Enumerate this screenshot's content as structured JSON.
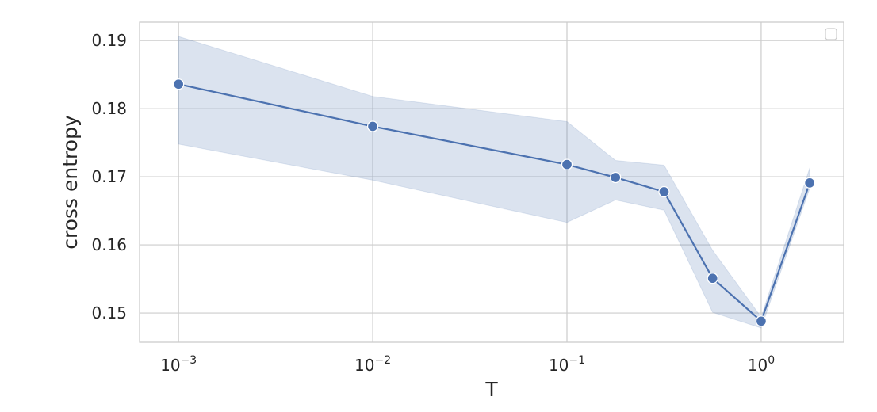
{
  "chart_data": {
    "type": "line",
    "xlabel": "T",
    "ylabel": "cross entropy",
    "xscale": "log",
    "xlim": [
      0.00063,
      2.66
    ],
    "ylim": [
      0.1457,
      0.1927
    ],
    "x_ticks": [
      {
        "value": 0.001,
        "base": "10",
        "exp": "−3"
      },
      {
        "value": 0.01,
        "base": "10",
        "exp": "−2"
      },
      {
        "value": 0.1,
        "base": "10",
        "exp": "−1"
      },
      {
        "value": 1,
        "base": "10",
        "exp": "0"
      }
    ],
    "y_ticks": [
      {
        "value": 0.15,
        "label": "0.15"
      },
      {
        "value": 0.16,
        "label": "0.16"
      },
      {
        "value": 0.17,
        "label": "0.17"
      },
      {
        "value": 0.18,
        "label": "0.18"
      },
      {
        "value": 0.19,
        "label": "0.19"
      }
    ],
    "grid": true,
    "legend": "top-right (empty)",
    "series": [
      {
        "color": "#4c72b0",
        "x": [
          0.001,
          0.01,
          0.1,
          0.1778,
          0.3162,
          0.5623,
          1.0,
          1.778
        ],
        "y": [
          0.1836,
          0.1774,
          0.1718,
          0.1699,
          0.1678,
          0.1551,
          0.1488,
          0.1691
        ],
        "y_lower": [
          0.1748,
          0.1695,
          0.1633,
          0.1666,
          0.1651,
          0.1501,
          0.1478,
          0.1683
        ],
        "y_upper": [
          0.1906,
          0.1818,
          0.1781,
          0.1724,
          0.1717,
          0.1592,
          0.1494,
          0.1713
        ]
      }
    ]
  }
}
